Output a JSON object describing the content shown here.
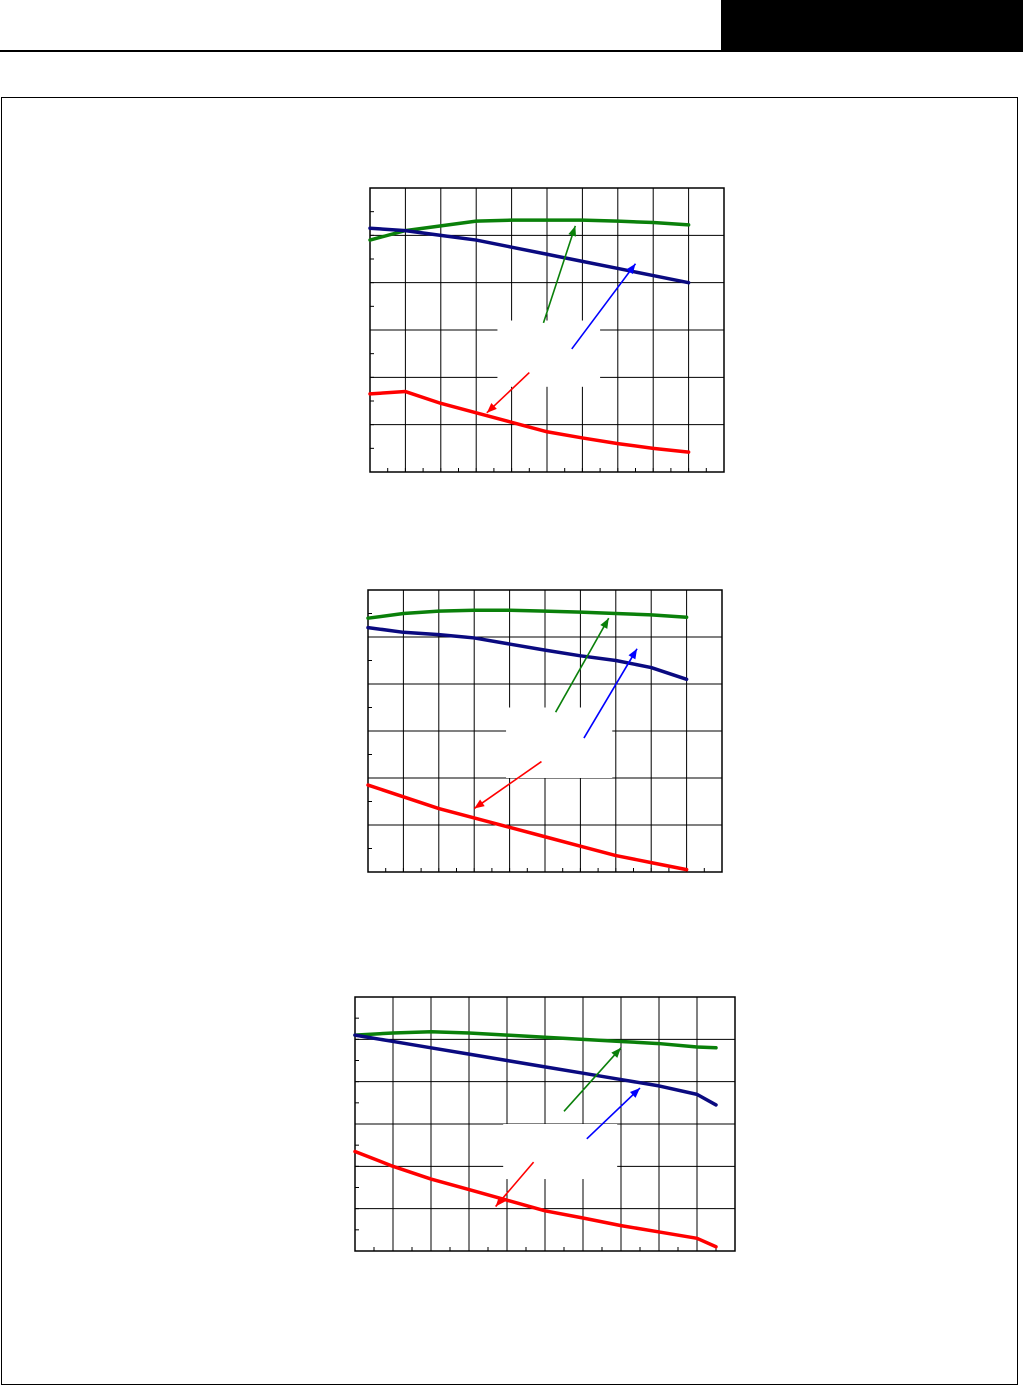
{
  "header": {
    "tab_color": "#000000"
  },
  "colors": {
    "green": "#0a800a",
    "blue": "#0a0a80",
    "red": "#ff0000",
    "grid": "#000000",
    "arrow_green": "#0a800a",
    "arrow_blue": "#0000ff",
    "arrow_red": "#ff0000"
  },
  "chart_data": [
    {
      "type": "line",
      "title": "",
      "xlabel": "",
      "ylabel": "",
      "xlim": [
        0,
        100
      ],
      "ylim": [
        0,
        6
      ],
      "x_major_step": 10,
      "x_minor_step": 5,
      "y_major_step": 1,
      "y_minor_step": 0.5,
      "grid": true,
      "series": [
        {
          "color": "green",
          "x": [
            0,
            10,
            20,
            30,
            40,
            50,
            60,
            70,
            80,
            90
          ],
          "y": [
            4.9,
            5.1,
            5.2,
            5.3,
            5.32,
            5.32,
            5.32,
            5.3,
            5.27,
            5.22
          ]
        },
        {
          "color": "blue",
          "x": [
            0,
            10,
            20,
            30,
            40,
            50,
            60,
            70,
            80,
            90
          ],
          "y": [
            5.15,
            5.1,
            5.0,
            4.9,
            4.75,
            4.6,
            4.45,
            4.3,
            4.15,
            4.0
          ]
        },
        {
          "color": "red",
          "x": [
            0,
            10,
            20,
            30,
            40,
            50,
            60,
            70,
            80,
            90
          ],
          "y": [
            1.65,
            1.7,
            1.45,
            1.25,
            1.05,
            0.85,
            0.72,
            0.6,
            0.5,
            0.42
          ]
        }
      ],
      "arrows": [
        {
          "color": "arrow_green",
          "from": [
            49,
            3.15
          ],
          "to": [
            58,
            5.2
          ]
        },
        {
          "color": "arrow_blue",
          "from": [
            57,
            2.6
          ],
          "to": [
            75,
            4.4
          ]
        },
        {
          "color": "arrow_red",
          "from": [
            45,
            2.1
          ],
          "to": [
            33,
            1.25
          ]
        }
      ],
      "label_box": {
        "x": [
          36,
          65
        ],
        "y": [
          1.8,
          3.2
        ]
      }
    },
    {
      "type": "line",
      "title": "",
      "xlabel": "",
      "ylabel": "",
      "xlim": [
        0,
        100
      ],
      "ylim": [
        0,
        6
      ],
      "x_major_step": 10,
      "x_minor_step": 5,
      "y_major_step": 1,
      "y_minor_step": 0.5,
      "grid": true,
      "series": [
        {
          "color": "green",
          "x": [
            0,
            10,
            20,
            30,
            40,
            50,
            60,
            70,
            80,
            90
          ],
          "y": [
            5.4,
            5.5,
            5.55,
            5.57,
            5.57,
            5.55,
            5.53,
            5.5,
            5.47,
            5.42
          ]
        },
        {
          "color": "blue",
          "x": [
            0,
            10,
            20,
            30,
            40,
            50,
            60,
            70,
            80,
            90
          ],
          "y": [
            5.2,
            5.1,
            5.05,
            4.98,
            4.85,
            4.72,
            4.6,
            4.5,
            4.35,
            4.1
          ]
        },
        {
          "color": "red",
          "x": [
            0,
            10,
            20,
            30,
            40,
            50,
            60,
            70,
            80,
            90
          ],
          "y": [
            1.85,
            1.6,
            1.35,
            1.15,
            0.95,
            0.75,
            0.55,
            0.35,
            0.2,
            0.05
          ]
        }
      ],
      "arrows": [
        {
          "color": "arrow_green",
          "from": [
            53,
            3.4
          ],
          "to": [
            68,
            5.4
          ]
        },
        {
          "color": "arrow_blue",
          "from": [
            61,
            2.85
          ],
          "to": [
            76,
            4.75
          ]
        },
        {
          "color": "arrow_red",
          "from": [
            49,
            2.35
          ],
          "to": [
            30,
            1.35
          ]
        }
      ],
      "label_box": {
        "x": [
          39,
          69
        ],
        "y": [
          2.0,
          3.5
        ]
      }
    },
    {
      "type": "line",
      "title": "",
      "xlabel": "",
      "ylabel": "",
      "xlim": [
        0,
        100
      ],
      "ylim": [
        0,
        6
      ],
      "x_major_step": 10,
      "x_minor_step": 5,
      "y_major_step": 1,
      "y_minor_step": 0.5,
      "grid": true,
      "series": [
        {
          "color": "green",
          "x": [
            0,
            10,
            20,
            30,
            40,
            50,
            60,
            70,
            80,
            90,
            95
          ],
          "y": [
            5.1,
            5.15,
            5.18,
            5.15,
            5.1,
            5.05,
            5.0,
            4.95,
            4.9,
            4.82,
            4.8
          ]
        },
        {
          "color": "blue",
          "x": [
            0,
            10,
            20,
            30,
            40,
            50,
            60,
            70,
            80,
            90,
            95
          ],
          "y": [
            5.1,
            4.95,
            4.8,
            4.65,
            4.5,
            4.35,
            4.2,
            4.05,
            3.9,
            3.7,
            3.45
          ]
        },
        {
          "color": "red",
          "x": [
            0,
            10,
            20,
            30,
            40,
            50,
            60,
            70,
            80,
            90,
            95
          ],
          "y": [
            2.35,
            2.0,
            1.7,
            1.45,
            1.2,
            0.95,
            0.78,
            0.6,
            0.45,
            0.3,
            0.1
          ]
        }
      ],
      "arrows": [
        {
          "color": "arrow_green",
          "from": [
            55,
            3.3
          ],
          "to": [
            70,
            4.8
          ]
        },
        {
          "color": "arrow_blue",
          "from": [
            61,
            2.65
          ],
          "to": [
            75,
            3.85
          ]
        },
        {
          "color": "arrow_red",
          "from": [
            47,
            2.1
          ],
          "to": [
            37,
            1.05
          ]
        }
      ],
      "label_box": {
        "x": [
          39,
          69
        ],
        "y": [
          1.7,
          3.0
        ]
      }
    }
  ]
}
